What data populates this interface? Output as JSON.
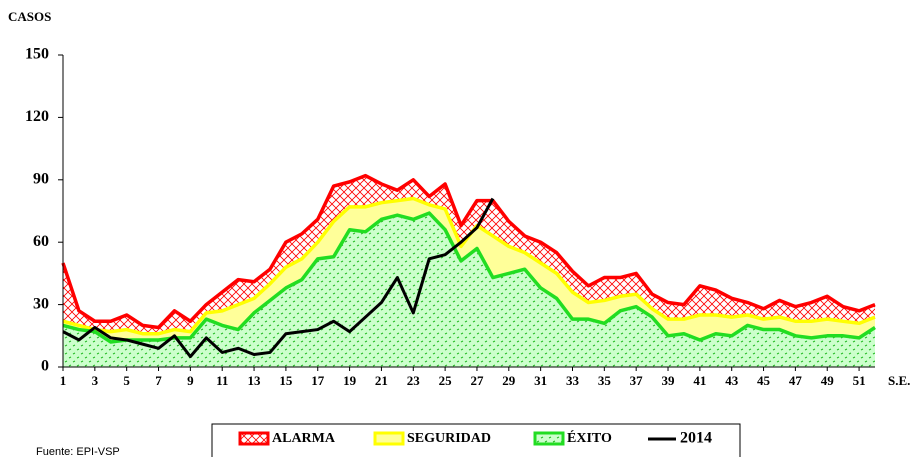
{
  "chart_data": {
    "type": "area",
    "y_label": "CASOS",
    "x_label": "S.E.",
    "source": "Fuente: EPI-VSP",
    "x": [
      1,
      2,
      3,
      4,
      5,
      6,
      7,
      8,
      9,
      10,
      11,
      12,
      13,
      14,
      15,
      16,
      17,
      18,
      19,
      20,
      21,
      22,
      23,
      24,
      25,
      26,
      27,
      28,
      29,
      30,
      31,
      32,
      33,
      34,
      35,
      36,
      37,
      38,
      39,
      40,
      41,
      42,
      43,
      44,
      45,
      46,
      47,
      48,
      49,
      50,
      51,
      52
    ],
    "xlim": [
      1,
      52
    ],
    "xticks": [
      1,
      3,
      5,
      7,
      9,
      11,
      13,
      15,
      17,
      19,
      21,
      23,
      25,
      27,
      29,
      31,
      33,
      35,
      37,
      39,
      41,
      43,
      45,
      47,
      49,
      51
    ],
    "ylim": [
      0,
      150
    ],
    "yticks": [
      0,
      30,
      60,
      90,
      120,
      150
    ],
    "grid": false,
    "series": [
      {
        "name": "ALARMA",
        "color": "#ff0000",
        "values": [
          50,
          27,
          22,
          22,
          25,
          20,
          19,
          27,
          22,
          30,
          36,
          42,
          41,
          47,
          60,
          64,
          71,
          87,
          89,
          92,
          88,
          85,
          90,
          82,
          88,
          68,
          80,
          80,
          70,
          63,
          60,
          55,
          46,
          39,
          43,
          43,
          45,
          35,
          31,
          30,
          39,
          37,
          33,
          31,
          28,
          32,
          29,
          31,
          34,
          29,
          27,
          30
        ]
      },
      {
        "name": "SEGURIDAD",
        "color": "#ffff00",
        "values": [
          22,
          20,
          18,
          17,
          18,
          16,
          16,
          18,
          17,
          26,
          27,
          30,
          33,
          40,
          48,
          52,
          60,
          70,
          77,
          77,
          79,
          80,
          81,
          78,
          76,
          58,
          68,
          63,
          58,
          55,
          50,
          45,
          36,
          31,
          32,
          34,
          35,
          28,
          23,
          23,
          25,
          25,
          24,
          25,
          23,
          24,
          22,
          22,
          23,
          22,
          21,
          24
        ]
      },
      {
        "name": "ÉXITO",
        "color": "#22dd22",
        "values": [
          20,
          18,
          17,
          12,
          13,
          13,
          13,
          14,
          14,
          23,
          20,
          18,
          26,
          32,
          38,
          42,
          52,
          53,
          66,
          65,
          71,
          73,
          71,
          74,
          66,
          51,
          57,
          43,
          45,
          47,
          38,
          33,
          23,
          23,
          21,
          27,
          29,
          24,
          15,
          16,
          13,
          16,
          15,
          20,
          18,
          18,
          15,
          14,
          15,
          15,
          14,
          19
        ]
      },
      {
        "name": "2014",
        "color": "#000000",
        "line": true,
        "values": [
          17,
          13,
          19,
          14,
          13,
          11,
          9,
          15,
          5,
          14,
          7,
          9,
          6,
          7,
          16,
          17,
          18,
          22,
          17,
          24,
          31,
          43,
          26,
          52,
          54,
          60,
          67,
          81,
          null,
          null,
          null,
          null,
          null,
          null,
          null,
          null,
          null,
          null,
          null,
          null,
          null,
          null,
          null,
          null,
          null,
          null,
          null,
          null,
          null,
          null,
          null,
          null
        ]
      }
    ]
  }
}
